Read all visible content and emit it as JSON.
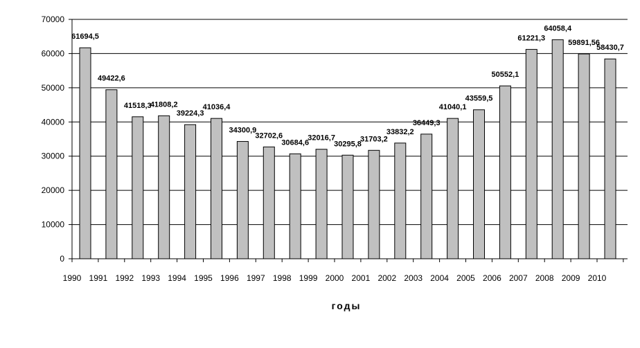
{
  "chart_data": {
    "type": "bar",
    "xlabel": "годы",
    "ylabel": "",
    "ylim": [
      0,
      70000
    ],
    "y_ticks": [
      "0",
      "10000",
      "20000",
      "30000",
      "40000",
      "50000",
      "60000",
      "70000"
    ],
    "year_labels": [
      "1990",
      "1991",
      "1992",
      "1993",
      "1994",
      "1995",
      "1996",
      "1997",
      "1998",
      "1999",
      "2000",
      "2001",
      "2002",
      "2003",
      "2004",
      "2005",
      "2006",
      "2007",
      "2008",
      "2009",
      "2010"
    ],
    "values": [
      61694.5,
      49422.6,
      41518.3,
      41808.2,
      39224.3,
      41036.4,
      34300.9,
      32702.6,
      30684.6,
      32016.7,
      30295.8,
      31703.2,
      33832.2,
      36449.3,
      41040.1,
      43559.5,
      50552.1,
      61221.3,
      64058.4,
      59891.56,
      58430.7
    ],
    "value_labels": [
      "61694,5",
      "49422,6",
      "41518,3",
      "41808,2",
      "39224,3",
      "41036,4",
      "34300,9",
      "32702,6",
      "30684,6",
      "32016,7",
      "30295,8",
      "31703,2",
      "33832,2",
      "36449,3",
      "41040,1",
      "43559,5",
      "50552,1",
      "61221,3",
      "64058,4",
      "59891,56",
      "58430,7"
    ],
    "grid": true,
    "bar_color": "#c0c0c0",
    "bar_edge_color": "#000000"
  }
}
